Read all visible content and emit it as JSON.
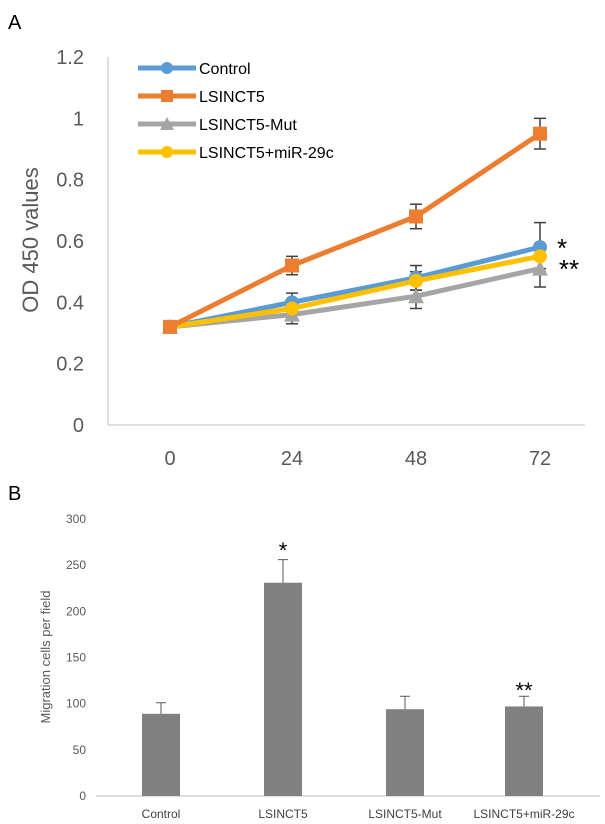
{
  "colors": {
    "axis": "#bfbfbf",
    "tick_text": "#595959",
    "control": "#5b9bd5",
    "lsinct5": "#ed7d31",
    "lsinct5_mut": "#a5a5a5",
    "lsinct5_mir29c": "#ffc000",
    "bar": "#808080",
    "error_a": "#404040",
    "error_b": "#595959"
  },
  "chart_data": [
    {
      "panel_label": "A",
      "type": "line",
      "ylabel": "OD 450 values",
      "xlabel": "",
      "ylim": [
        0,
        1.2
      ],
      "yticks": [
        "0",
        "0.2",
        "0.4",
        "0.6",
        "0.8",
        "1",
        "1.2"
      ],
      "x": [
        0,
        24,
        48,
        72
      ],
      "xticks": [
        "0",
        "24",
        "48",
        "72"
      ],
      "legend_position": "top-left",
      "series": [
        {
          "name": "Control",
          "color": "#5b9bd5",
          "marker": "circle",
          "values": [
            0.32,
            0.4,
            0.48,
            0.58
          ],
          "errors": [
            0.01,
            0.03,
            0.04,
            0.08
          ]
        },
        {
          "name": "LSINCT5",
          "color": "#ed7d31",
          "marker": "square",
          "values": [
            0.32,
            0.52,
            0.68,
            0.95
          ],
          "errors": [
            0.01,
            0.03,
            0.04,
            0.05
          ]
        },
        {
          "name": "LSINCT5-Mut",
          "color": "#a5a5a5",
          "marker": "triangle",
          "values": [
            0.32,
            0.36,
            0.42,
            0.51
          ],
          "errors": [
            0.01,
            0.03,
            0.04,
            0.06
          ]
        },
        {
          "name": "LSINCT5+miR-29c",
          "color": "#ffc000",
          "marker": "circle",
          "values": [
            0.32,
            0.38,
            0.47,
            0.55
          ],
          "errors": [
            0.01,
            0.02,
            0.03,
            0.04
          ]
        }
      ],
      "annotations": [
        {
          "text": "*",
          "x": 72,
          "y": 0.58
        },
        {
          "text": "**",
          "x": 72,
          "y": 0.53
        }
      ]
    },
    {
      "panel_label": "B",
      "type": "bar",
      "ylabel": "Migration cells per field",
      "xlabel": "",
      "ylim": [
        0,
        300
      ],
      "yticks": [
        "0",
        "50",
        "100",
        "150",
        "200",
        "250",
        "300"
      ],
      "categories": [
        "Control",
        "LSINCT5",
        "LSINCT5-Mut",
        "LSINCT5+miR-29c"
      ],
      "values": [
        89,
        231,
        94,
        97
      ],
      "errors": [
        12,
        25,
        14,
        11
      ],
      "annotations": [
        {
          "text": "*",
          "category": "LSINCT5"
        },
        {
          "text": "**",
          "category": "LSINCT5+miR-29c"
        }
      ]
    }
  ]
}
